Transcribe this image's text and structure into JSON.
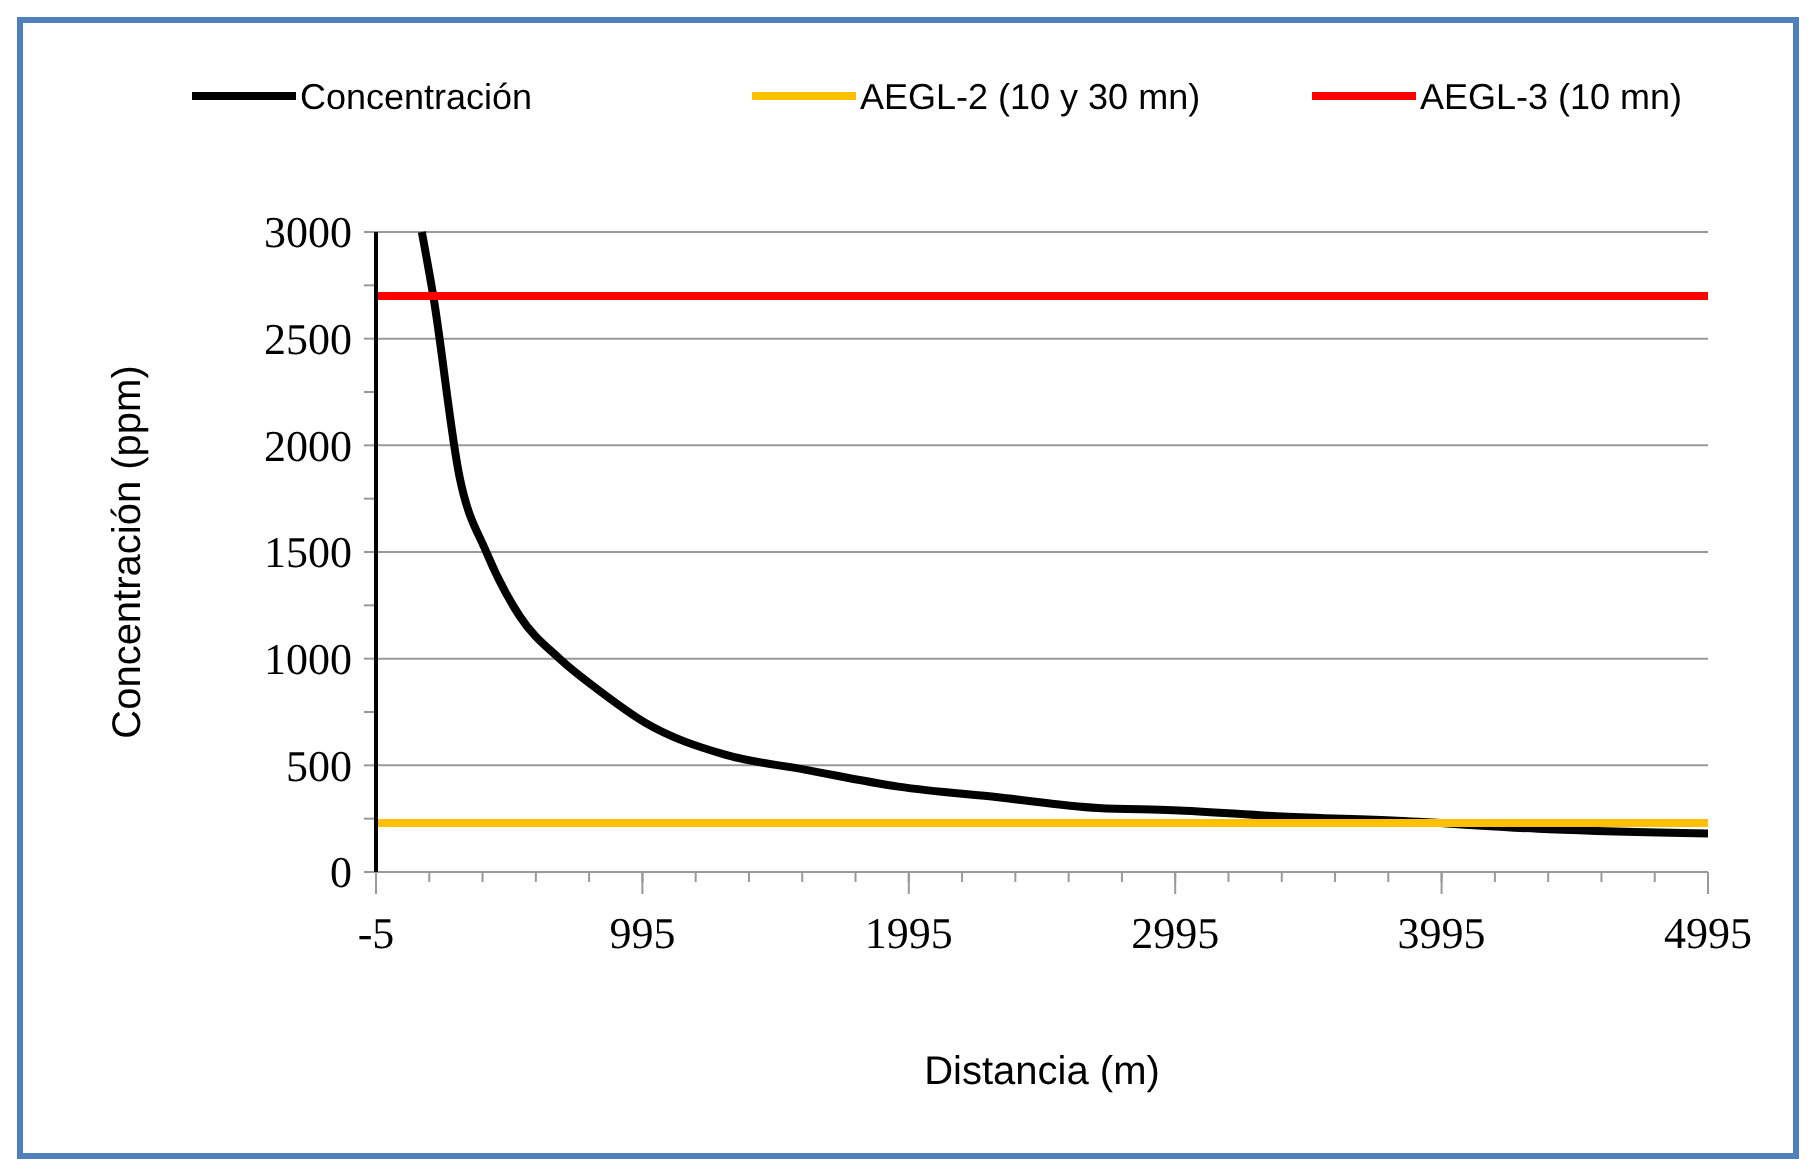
{
  "chart_data": {
    "type": "line",
    "xlabel": "Distancia (m)",
    "ylabel": "Concentración (ppm)",
    "xlim": [
      -5,
      4995
    ],
    "xticks": [
      -5,
      995,
      1995,
      2995,
      3995,
      4995
    ],
    "ylim": [
      0,
      3000
    ],
    "yticks": [
      0,
      500,
      1000,
      1500,
      2000,
      2500,
      3000
    ],
    "grid": "y",
    "legend": "top",
    "line_style": "solid",
    "series": [
      {
        "name": "Concentración",
        "color": "#000000",
        "x": [
          167,
          210,
          309,
          409,
          534,
          684,
          833,
          1005,
          1305,
          1604,
          1956,
          2330,
          2705,
          2989,
          3400,
          3828,
          4400,
          4995
        ],
        "values": [
          3000,
          2700,
          1850,
          1500,
          1200,
          1000,
          850,
          700,
          550,
          480,
          400,
          350,
          300,
          290,
          260,
          240,
          200,
          180
        ]
      },
      {
        "name": "AEGL-2 (10 y 30 mn)",
        "color": "#ffc000",
        "x": [
          -5,
          4995
        ],
        "values": [
          230,
          230
        ]
      },
      {
        "name": "AEGL-3 (10 mn)",
        "color": "#ff0000",
        "x": [
          -5,
          4995
        ],
        "values": [
          2700,
          2700
        ]
      }
    ]
  }
}
